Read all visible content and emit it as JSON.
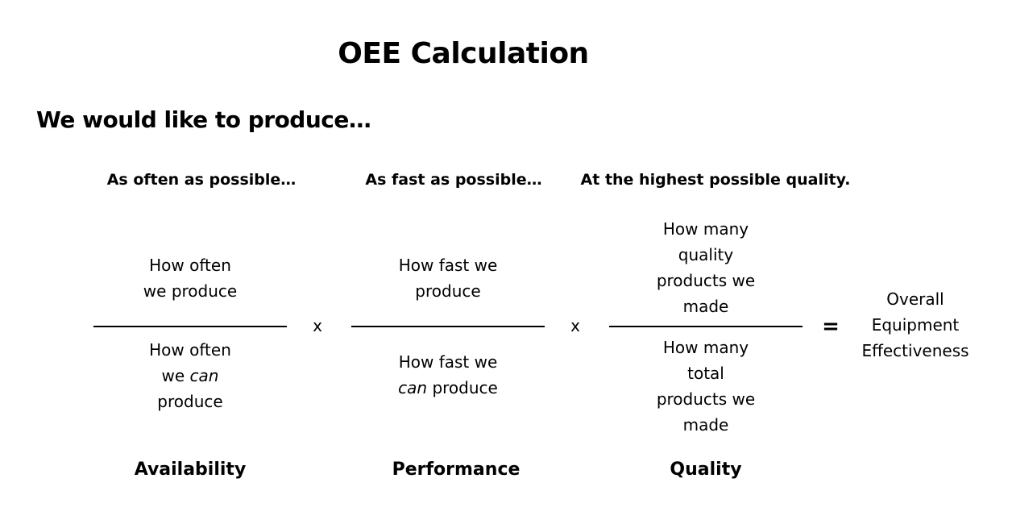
{
  "title": "OEE Calculation",
  "subtitle": "We would like to produce…",
  "columns": [
    {
      "heading": "As often as possible…",
      "numerator": [
        "How often",
        "we produce"
      ],
      "denominator": [
        "How often",
        "we |can|",
        "produce"
      ],
      "label": "Availability"
    },
    {
      "heading": "As fast as possible…",
      "numerator": [
        "How fast we",
        "produce"
      ],
      "denominator": [
        "How fast we",
        "|can| produce"
      ],
      "label": "Performance"
    },
    {
      "heading": "At the highest possible quality.",
      "numerator": [
        "How many",
        "quality",
        "products we",
        "made"
      ],
      "denominator": [
        "How many",
        "total",
        "products we",
        "made"
      ],
      "label": "Quality"
    }
  ],
  "operators": [
    "x",
    "x"
  ],
  "equals": "=",
  "result": [
    "Overall",
    "Equipment",
    "Effectiveness"
  ]
}
